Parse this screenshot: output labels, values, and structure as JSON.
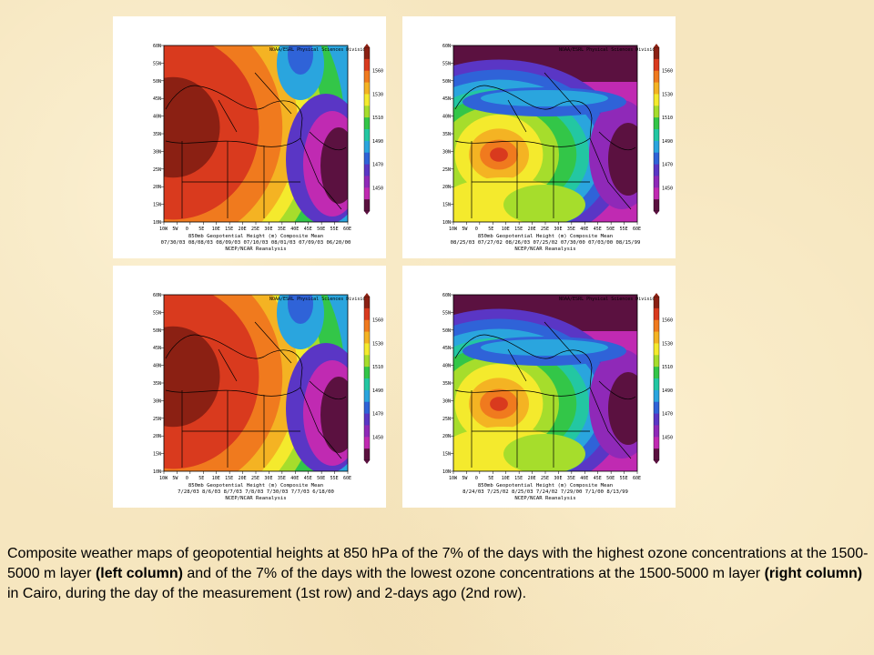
{
  "maps": [
    {
      "credit": "NOAA/ESRL Physical Sciences Division",
      "title": "850mb Geopotential Height (m) Composite Mean",
      "dates": "07/30/03 08/08/03 08/09/03 07/10/03 08/01/03 07/09/03 06/20/00",
      "source": "NCEP/NCAR Reanalysis",
      "high_center": "west"
    },
    {
      "credit": "NOAA/ESRL Physical Sciences Division",
      "title": "850mb Geopotential Height (m) Composite Mean",
      "dates": "08/25/03 07/27/02 08/26/03 07/25/02 07/30/00 07/03/00 08/15/99",
      "source": "NCEP/NCAR Reanalysis",
      "high_center": "south"
    },
    {
      "credit": "NOAA/ESRL Physical Sciences Division",
      "title": "850mb Geopotential Height (m) Composite Mean",
      "dates": "7/28/03 8/6/03 8/7/03 7/8/03 7/30/03 7/7/03 6/18/00",
      "source": "NCEP/NCAR Reanalysis",
      "high_center": "west"
    },
    {
      "credit": "NOAA/ESRL Physical Sciences Division",
      "title": "850mb Geopotential Height (m) Composite Mean",
      "dates": "8/24/03 7/25/02 8/25/03 7/24/02 7/29/00 7/1/00 8/13/99",
      "source": "NCEP/NCAR Reanalysis",
      "high_center": "south"
    }
  ],
  "lat_labels": [
    "60N",
    "55N",
    "50N",
    "45N",
    "40N",
    "35N",
    "30N",
    "25N",
    "20N",
    "15N",
    "10N"
  ],
  "lon_labels": [
    "10W",
    "5W",
    "0",
    "5E",
    "10E",
    "15E",
    "20E",
    "25E",
    "30E",
    "35E",
    "40E",
    "45E",
    "50E",
    "55E",
    "60E"
  ],
  "legend_labels": [
    "1560",
    "1530",
    "1510",
    "1490",
    "1470",
    "1450"
  ],
  "legend_colors": [
    "#8b2013",
    "#d93a1e",
    "#f07a1e",
    "#f4b323",
    "#f4ea2d",
    "#a6dd2c",
    "#33c648",
    "#23c7a2",
    "#2aa5de",
    "#2f63d8",
    "#5a36c5",
    "#8f29b8",
    "#c02ab2",
    "#5b1140"
  ],
  "caption": {
    "t1": "Composite weather maps of geopotential heights at 850 hPa of the 7% of the days with the highest ozone concentrations at the 1500-5000 m layer ",
    "b1": "(left column)",
    "t2": " and of the 7% of the days with the lowest ozone concentrations at the 1500-5000 m layer ",
    "b2": "(right column)",
    "t3": " in Cairo, during the day of the measurement (1st row) and 2-days ago (2nd row)."
  }
}
